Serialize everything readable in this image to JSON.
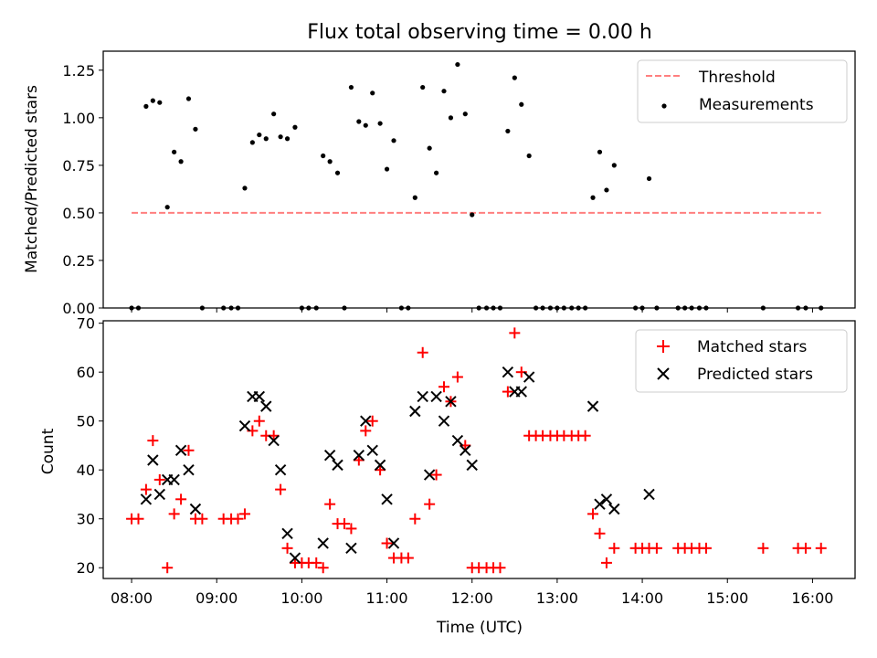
{
  "chart_data": [
    {
      "type": "scatter",
      "title": "Flux total observing time = 0.00 h",
      "ylabel": "Matched/Predicted stars",
      "xlabel": "",
      "ylim": [
        0,
        1.35
      ],
      "xlim": [
        7.6667,
        16.5
      ],
      "yticks": [
        "0.00",
        "0.25",
        "0.50",
        "0.75",
        "1.00",
        "1.25"
      ],
      "ytick_values": [
        0,
        0.25,
        0.5,
        0.75,
        1.0,
        1.25
      ],
      "threshold": {
        "name": "Threshold",
        "y": 0.5,
        "x_start": 8.0,
        "x_end": 16.1,
        "color": "#ff7f7f"
      },
      "legend_position": "top-right",
      "series": [
        {
          "name": "Measurements",
          "color": "#000000",
          "points": [
            [
              8.0,
              0
            ],
            [
              8.08,
              0
            ],
            [
              8.17,
              1.06
            ],
            [
              8.25,
              1.09
            ],
            [
              8.33,
              1.08
            ],
            [
              8.42,
              0.53
            ],
            [
              8.5,
              0.82
            ],
            [
              8.58,
              0.77
            ],
            [
              8.67,
              1.1
            ],
            [
              8.75,
              0.94
            ],
            [
              8.83,
              0
            ],
            [
              9.08,
              0
            ],
            [
              9.17,
              0
            ],
            [
              9.25,
              0
            ],
            [
              9.33,
              0.63
            ],
            [
              9.42,
              0.87
            ],
            [
              9.5,
              0.91
            ],
            [
              9.58,
              0.89
            ],
            [
              9.67,
              1.02
            ],
            [
              9.75,
              0.9
            ],
            [
              9.83,
              0.89
            ],
            [
              9.92,
              0.95
            ],
            [
              10.0,
              0
            ],
            [
              10.08,
              0
            ],
            [
              10.17,
              0
            ],
            [
              10.25,
              0.8
            ],
            [
              10.33,
              0.77
            ],
            [
              10.42,
              0.71
            ],
            [
              10.5,
              0
            ],
            [
              10.58,
              1.16
            ],
            [
              10.67,
              0.98
            ],
            [
              10.75,
              0.96
            ],
            [
              10.83,
              1.13
            ],
            [
              10.92,
              0.97
            ],
            [
              11.0,
              0.73
            ],
            [
              11.08,
              0.88
            ],
            [
              11.17,
              0
            ],
            [
              11.25,
              0
            ],
            [
              11.33,
              0.58
            ],
            [
              11.42,
              1.16
            ],
            [
              11.5,
              0.84
            ],
            [
              11.58,
              0.71
            ],
            [
              11.67,
              1.14
            ],
            [
              11.75,
              1.0
            ],
            [
              11.83,
              1.28
            ],
            [
              11.92,
              1.02
            ],
            [
              12.0,
              0.49
            ],
            [
              12.08,
              0
            ],
            [
              12.17,
              0
            ],
            [
              12.25,
              0
            ],
            [
              12.33,
              0
            ],
            [
              12.42,
              0.93
            ],
            [
              12.5,
              1.21
            ],
            [
              12.58,
              1.07
            ],
            [
              12.67,
              0.8
            ],
            [
              12.75,
              0
            ],
            [
              12.83,
              0
            ],
            [
              12.92,
              0
            ],
            [
              13.0,
              0
            ],
            [
              13.08,
              0
            ],
            [
              13.17,
              0
            ],
            [
              13.25,
              0
            ],
            [
              13.33,
              0
            ],
            [
              13.42,
              0.58
            ],
            [
              13.5,
              0.82
            ],
            [
              13.58,
              0.62
            ],
            [
              13.67,
              0.75
            ],
            [
              13.92,
              0
            ],
            [
              14.0,
              0
            ],
            [
              14.08,
              0.68
            ],
            [
              14.17,
              0
            ],
            [
              14.42,
              0
            ],
            [
              14.5,
              0
            ],
            [
              14.58,
              0
            ],
            [
              14.67,
              0
            ],
            [
              14.75,
              0
            ],
            [
              15.42,
              0
            ],
            [
              15.83,
              0
            ],
            [
              15.92,
              0
            ],
            [
              16.1,
              0
            ]
          ]
        }
      ]
    },
    {
      "type": "scatter",
      "title": "",
      "xlabel": "Time (UTC)",
      "ylabel": "Count",
      "ylim": [
        17.8,
        70.5
      ],
      "xlim": [
        7.6667,
        16.5
      ],
      "yticks": [
        "20",
        "30",
        "40",
        "50",
        "60",
        "70"
      ],
      "ytick_values": [
        20,
        30,
        40,
        50,
        60,
        70
      ],
      "xticks": [
        "08:00",
        "09:00",
        "10:00",
        "11:00",
        "12:00",
        "13:00",
        "14:00",
        "15:00",
        "16:00"
      ],
      "xtick_values": [
        8,
        9,
        10,
        11,
        12,
        13,
        14,
        15,
        16
      ],
      "legend_position": "top-right",
      "series": [
        {
          "name": "Matched stars",
          "marker": "plus",
          "color": "#ff0000",
          "points": [
            [
              8.0,
              30
            ],
            [
              8.08,
              30
            ],
            [
              8.17,
              36
            ],
            [
              8.25,
              46
            ],
            [
              8.33,
              38
            ],
            [
              8.42,
              20
            ],
            [
              8.5,
              31
            ],
            [
              8.58,
              34
            ],
            [
              8.67,
              44
            ],
            [
              8.75,
              30
            ],
            [
              8.83,
              30
            ],
            [
              9.08,
              30
            ],
            [
              9.17,
              30
            ],
            [
              9.25,
              30
            ],
            [
              9.33,
              31
            ],
            [
              9.42,
              48
            ],
            [
              9.5,
              50
            ],
            [
              9.58,
              47
            ],
            [
              9.67,
              47
            ],
            [
              9.75,
              36
            ],
            [
              9.83,
              24
            ],
            [
              9.92,
              21
            ],
            [
              10.0,
              21
            ],
            [
              10.08,
              21
            ],
            [
              10.17,
              21
            ],
            [
              10.25,
              20
            ],
            [
              10.33,
              33
            ],
            [
              10.42,
              29
            ],
            [
              10.5,
              29
            ],
            [
              10.58,
              28
            ],
            [
              10.67,
              42
            ],
            [
              10.75,
              48
            ],
            [
              10.83,
              50
            ],
            [
              10.92,
              40
            ],
            [
              11.0,
              25
            ],
            [
              11.08,
              22
            ],
            [
              11.17,
              22
            ],
            [
              11.25,
              22
            ],
            [
              11.33,
              30
            ],
            [
              11.42,
              64
            ],
            [
              11.5,
              33
            ],
            [
              11.58,
              39
            ],
            [
              11.67,
              57
            ],
            [
              11.75,
              54
            ],
            [
              11.83,
              59
            ],
            [
              11.92,
              45
            ],
            [
              12.0,
              20
            ],
            [
              12.08,
              20
            ],
            [
              12.17,
              20
            ],
            [
              12.25,
              20
            ],
            [
              12.33,
              20
            ],
            [
              12.42,
              56
            ],
            [
              12.5,
              68
            ],
            [
              12.58,
              60
            ],
            [
              12.67,
              47
            ],
            [
              12.75,
              47
            ],
            [
              12.83,
              47
            ],
            [
              12.92,
              47
            ],
            [
              13.0,
              47
            ],
            [
              13.08,
              47
            ],
            [
              13.17,
              47
            ],
            [
              13.25,
              47
            ],
            [
              13.33,
              47
            ],
            [
              13.42,
              31
            ],
            [
              13.5,
              27
            ],
            [
              13.58,
              21
            ],
            [
              13.67,
              24
            ],
            [
              13.92,
              24
            ],
            [
              14.0,
              24
            ],
            [
              14.08,
              24
            ],
            [
              14.17,
              24
            ],
            [
              14.42,
              24
            ],
            [
              14.5,
              24
            ],
            [
              14.58,
              24
            ],
            [
              14.67,
              24
            ],
            [
              14.75,
              24
            ],
            [
              15.42,
              24
            ],
            [
              15.83,
              24
            ],
            [
              15.92,
              24
            ],
            [
              16.1,
              24
            ]
          ]
        },
        {
          "name": "Predicted stars",
          "marker": "x",
          "color": "#000000",
          "points": [
            [
              8.17,
              34
            ],
            [
              8.25,
              42
            ],
            [
              8.33,
              35
            ],
            [
              8.42,
              38
            ],
            [
              8.5,
              38
            ],
            [
              8.58,
              44
            ],
            [
              8.67,
              40
            ],
            [
              8.75,
              32
            ],
            [
              9.33,
              49
            ],
            [
              9.42,
              55
            ],
            [
              9.5,
              55
            ],
            [
              9.58,
              53
            ],
            [
              9.67,
              46
            ],
            [
              9.75,
              40
            ],
            [
              9.83,
              27
            ],
            [
              9.92,
              22
            ],
            [
              10.25,
              25
            ],
            [
              10.33,
              43
            ],
            [
              10.42,
              41
            ],
            [
              10.58,
              24
            ],
            [
              10.67,
              43
            ],
            [
              10.75,
              50
            ],
            [
              10.83,
              44
            ],
            [
              10.92,
              41
            ],
            [
              11.0,
              34
            ],
            [
              11.08,
              25
            ],
            [
              11.33,
              52
            ],
            [
              11.42,
              55
            ],
            [
              11.5,
              39
            ],
            [
              11.58,
              55
            ],
            [
              11.67,
              50
            ],
            [
              11.75,
              54
            ],
            [
              11.83,
              46
            ],
            [
              11.92,
              44
            ],
            [
              12.0,
              41
            ],
            [
              12.42,
              60
            ],
            [
              12.5,
              56
            ],
            [
              12.58,
              56
            ],
            [
              12.67,
              59
            ],
            [
              13.42,
              53
            ],
            [
              13.5,
              33
            ],
            [
              13.58,
              34
            ],
            [
              13.67,
              32
            ],
            [
              14.08,
              35
            ]
          ]
        }
      ]
    }
  ]
}
